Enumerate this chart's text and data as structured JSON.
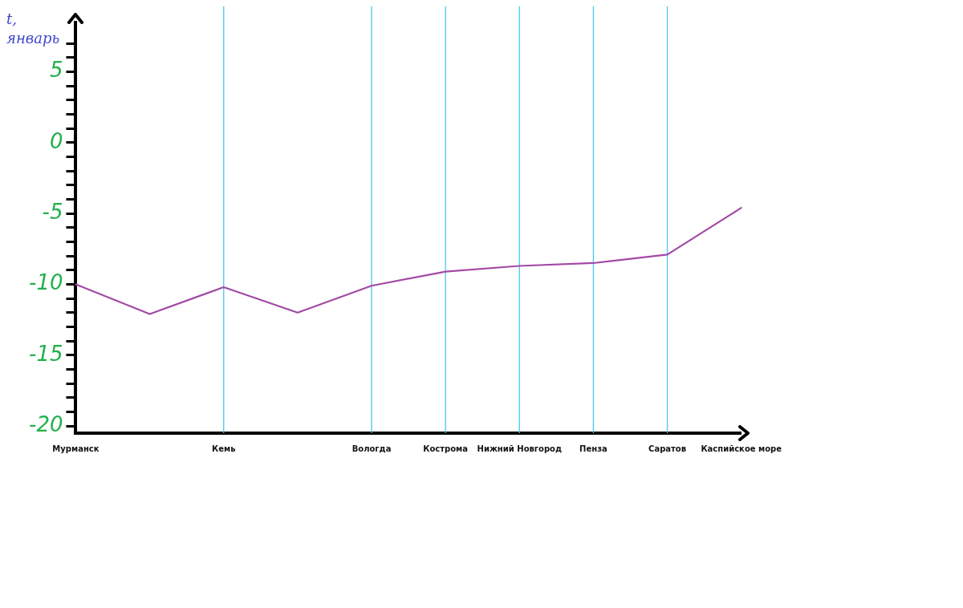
{
  "chart_data": {
    "type": "line",
    "ylabel": "t, январь",
    "categories": [
      "Мурманск",
      null,
      "Кемь",
      null,
      "Вологда",
      "Кострома",
      "Нижний Новгород",
      "Пенза",
      "Саратов",
      "Каспийское море"
    ],
    "values": [
      -10,
      -12.1,
      -10.2,
      -12,
      -10.1,
      -9.1,
      -8.7,
      -8.5,
      -7.9,
      -4.6
    ],
    "color": "#a349a4",
    "ylim": [
      -20.5,
      8.5
    ],
    "yticks": [
      -20,
      {
        "value": -19,
        "label": null
      },
      {
        "value": -18,
        "label": null
      },
      {
        "value": -17,
        "label": null
      },
      {
        "value": -16,
        "label": null
      },
      -15,
      {
        "value": -14,
        "label": null
      },
      {
        "value": -13,
        "label": null
      },
      {
        "value": -12,
        "label": null
      },
      {
        "value": -11,
        "label": null
      },
      -10,
      {
        "value": -9,
        "label": null
      },
      {
        "value": -8,
        "label": null
      },
      {
        "value": -7,
        "label": null
      },
      {
        "value": -6,
        "label": null
      },
      -5,
      {
        "value": -4,
        "label": null
      },
      {
        "value": -3,
        "label": null
      },
      {
        "value": -2,
        "label": null
      },
      {
        "value": -1,
        "label": null
      },
      0,
      {
        "value": 1,
        "label": null
      },
      {
        "value": 2,
        "label": null
      },
      {
        "value": 3,
        "label": null
      },
      {
        "value": 4,
        "label": null
      },
      5,
      {
        "value": 6,
        "label": null
      },
      {
        "value": 7,
        "label": null
      }
    ],
    "grid": false,
    "legend": false,
    "marker": "none",
    "ref_lines": [
      {
        "axis": "x",
        "value": "Кемь",
        "color": "#4cc3f2"
      },
      {
        "axis": "x",
        "value": "Вологда",
        "color": "#4cc3f2"
      },
      {
        "axis": "x",
        "value": "Кострома",
        "color": "#4cc3f2"
      },
      {
        "axis": "x",
        "value": "Нижний Новгород",
        "color": "#4cc3f2"
      },
      {
        "axis": "x",
        "value": "Пенза",
        "color": "#4cc3f2"
      },
      {
        "axis": "x",
        "value": "Саратов",
        "color": "#4cc3f2"
      }
    ]
  }
}
